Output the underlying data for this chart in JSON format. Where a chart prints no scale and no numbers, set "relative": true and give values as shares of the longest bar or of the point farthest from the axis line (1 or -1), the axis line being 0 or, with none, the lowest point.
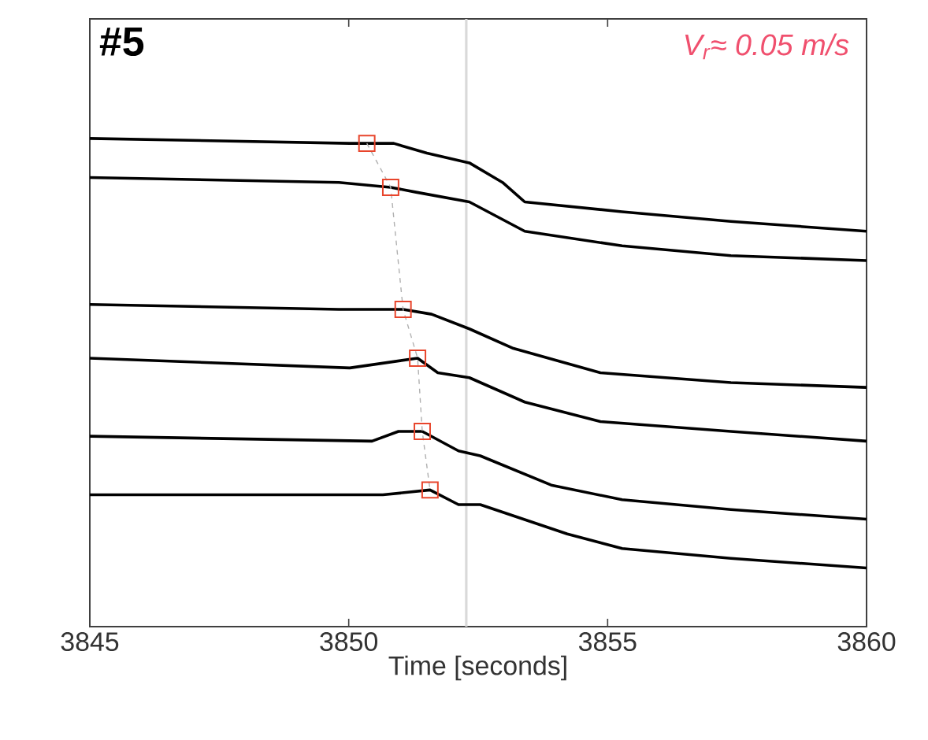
{
  "chart_data": {
    "type": "line",
    "title": "#5",
    "xlabel": "Time [seconds]",
    "annotations": [
      "V$_{r}$≈ 0.05 m/s"
    ],
    "xlim": [
      3845,
      3860
    ],
    "xticks": [
      3845,
      3850,
      3855,
      3860
    ],
    "tick_labels": "x",
    "relative": true,
    "ref_lines": [
      {
        "axis": "x",
        "value": 3852.27,
        "color": "#d9d9d9"
      }
    ],
    "series": [
      {
        "color": "#000000",
        "x": [
          3845,
          3850.02,
          3850.35,
          3850.87,
          3851.51,
          3852.33,
          3852.97,
          3853.4,
          3855.28,
          3857.38,
          3860
        ],
        "values": [
          1.0,
          0.99,
          0.99,
          0.99,
          0.97,
          0.95,
          0.91,
          0.87,
          0.85,
          0.83,
          0.81
        ]
      },
      {
        "color": "#000000",
        "x": [
          3845,
          3849.81,
          3850.81,
          3851.3,
          3852.33,
          3853.4,
          3855.28,
          3857.38,
          3860
        ],
        "values": [
          0.92,
          0.91,
          0.9,
          0.89,
          0.87,
          0.81,
          0.78,
          0.76,
          0.75
        ]
      },
      {
        "color": "#000000",
        "x": [
          3845,
          3849.81,
          3851.05,
          3851.6,
          3852.33,
          3853.18,
          3854.86,
          3857.38,
          3860
        ],
        "values": [
          0.66,
          0.65,
          0.65,
          0.64,
          0.61,
          0.57,
          0.52,
          0.5,
          0.49
        ]
      },
      {
        "color": "#000000",
        "x": [
          3845,
          3850.02,
          3851.33,
          3851.72,
          3852.33,
          3853.4,
          3854.86,
          3857.38,
          3860
        ],
        "values": [
          0.55,
          0.53,
          0.55,
          0.52,
          0.51,
          0.46,
          0.42,
          0.4,
          0.38
        ]
      },
      {
        "color": "#000000",
        "x": [
          3845,
          3850.45,
          3850.96,
          3851.42,
          3852.12,
          3852.54,
          3853.91,
          3855.28,
          3857.38,
          3860
        ],
        "values": [
          0.39,
          0.38,
          0.4,
          0.4,
          0.36,
          0.35,
          0.29,
          0.26,
          0.24,
          0.22
        ]
      },
      {
        "color": "#000000",
        "x": [
          3845,
          3850.66,
          3851.57,
          3852.12,
          3852.54,
          3854.22,
          3855.28,
          3857.38,
          3860
        ],
        "values": [
          0.27,
          0.27,
          0.28,
          0.25,
          0.25,
          0.19,
          0.16,
          0.14,
          0.12
        ]
      },
      {
        "type": "line",
        "color": "#b0b0b0",
        "line_style": "dashed",
        "x": [
          3850.35,
          3850.81,
          3851.05,
          3851.33,
          3851.42,
          3851.57
        ],
        "values": [
          0.99,
          0.9,
          0.65,
          0.55,
          0.4,
          0.28
        ]
      },
      {
        "type": "scatter",
        "marker": "square",
        "color": "#e8452c",
        "x": [
          3850.35,
          3850.81,
          3851.05,
          3851.33,
          3851.42,
          3851.57
        ],
        "values": [
          0.99,
          0.9,
          0.65,
          0.55,
          0.4,
          0.28
        ]
      }
    ]
  }
}
